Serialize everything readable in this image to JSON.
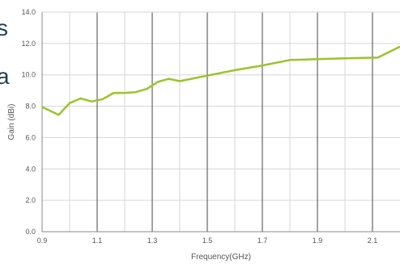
{
  "chart_data": {
    "type": "line",
    "title": "",
    "xlabel": "Frequency(GHz)",
    "ylabel": "Gain (dBi)",
    "xlim": [
      0.9,
      2.2
    ],
    "ylim": [
      0,
      14
    ],
    "x_ticks": [
      0.9,
      1.1,
      1.3,
      1.5,
      1.7,
      1.9,
      2.1
    ],
    "x_tick_labels": [
      "0.9",
      "1.1",
      "1.3",
      "1.5",
      "1.7",
      "1.9",
      "2.1"
    ],
    "y_ticks": [
      0,
      2,
      4,
      6,
      8,
      10,
      12,
      14
    ],
    "y_tick_labels": [
      "0.0",
      "2.0",
      "4.0",
      "6.0",
      "8.0",
      "10.0",
      "12.0",
      "14.0"
    ],
    "grid": {
      "x_major": true,
      "x_minor": true,
      "y_major": true
    },
    "legend": "none",
    "line_color": "#9bc32c",
    "series": [
      {
        "x": [
          0.9,
          0.96,
          1.0,
          1.04,
          1.08,
          1.12,
          1.16,
          1.2,
          1.24,
          1.28,
          1.32,
          1.36,
          1.4,
          1.5,
          1.6,
          1.7,
          1.8,
          1.9,
          2.0,
          2.12,
          2.2
        ],
        "values": [
          7.95,
          7.45,
          8.2,
          8.5,
          8.3,
          8.45,
          8.85,
          8.85,
          8.9,
          9.1,
          9.55,
          9.75,
          9.6,
          9.95,
          10.3,
          10.6,
          10.95,
          11.0,
          11.05,
          11.1,
          11.8
        ]
      }
    ]
  },
  "background_text": [
    "s",
    "a"
  ]
}
